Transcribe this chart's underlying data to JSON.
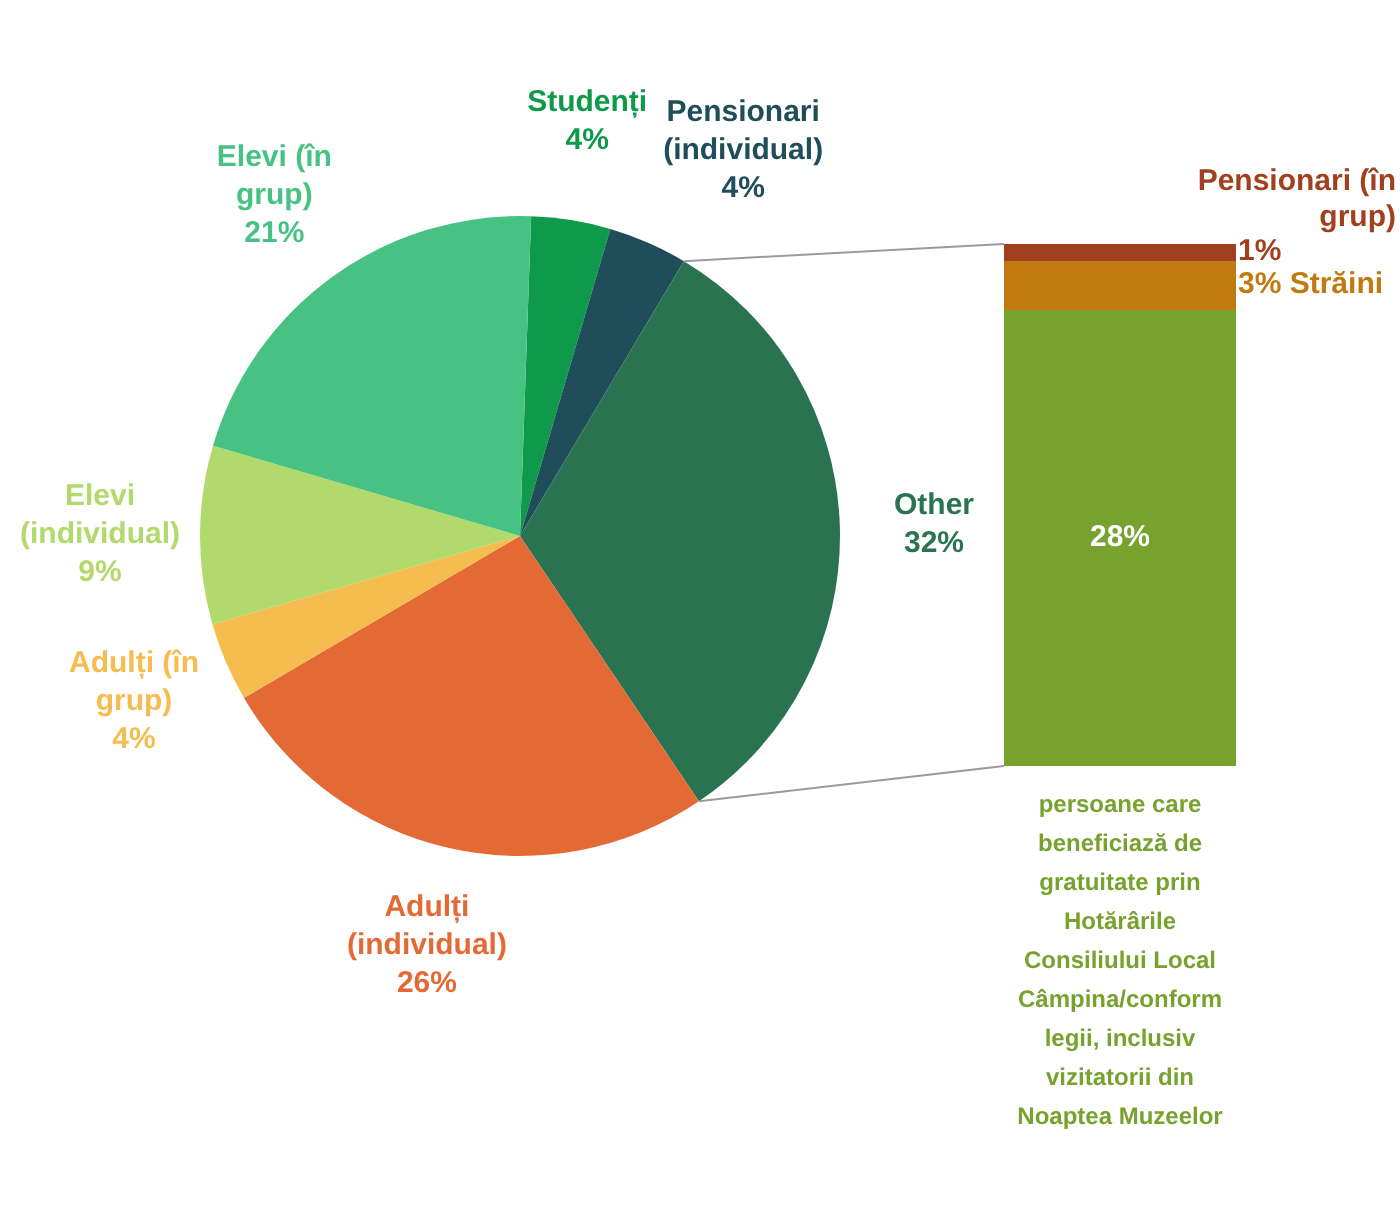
{
  "chart_data": [
    {
      "type": "pie",
      "categories": [
        "Studenți",
        "Pensionari (individual)",
        "Other",
        "Adulți (individual)",
        "Adulți (în grup)",
        "Elevi (individual)",
        "Elevi (în grup)"
      ],
      "values": [
        4,
        4,
        32,
        26,
        4,
        9,
        21
      ],
      "value_labels": [
        "4%",
        "4%",
        "32%",
        "26%",
        "4%",
        "9%",
        "21%"
      ],
      "colors": [
        "#0e9a4a",
        "#1f4e5a",
        "#2a7350",
        "#e36a35",
        "#f5bc4f",
        "#b1d96b",
        "#47c282"
      ],
      "legend": false
    },
    {
      "type": "bar",
      "stacked": true,
      "categories": [
        null
      ],
      "legend": false,
      "tick_labels": false,
      "series": [
        {
          "name": "persoane care beneficiază de gratuitate prin Hotărârile Consiliului Local Câmpina/conform legii, inclusiv vizitatorii din Noaptea Muzeelor",
          "color": "#77a22e",
          "values": [
            28
          ],
          "value_labels": [
            "28%"
          ]
        },
        {
          "name": "Străini",
          "color": "#c07a10",
          "values": [
            3
          ],
          "value_labels": [
            "3%"
          ]
        },
        {
          "name": "Pensionari (în grup)",
          "color": "#a0401e",
          "values": [
            1
          ],
          "value_labels": [
            "1%"
          ]
        }
      ]
    }
  ]
}
